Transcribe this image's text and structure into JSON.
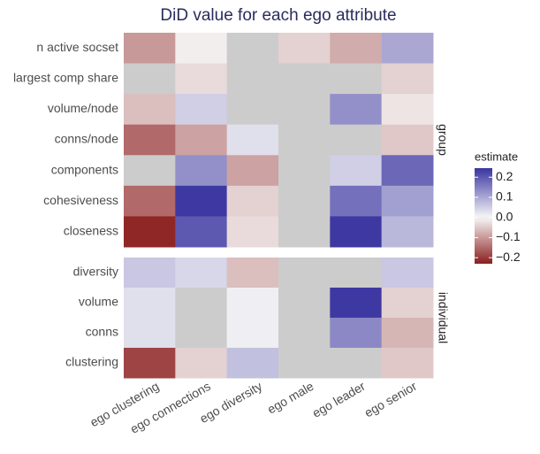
{
  "chart_data": {
    "type": "heatmap",
    "title": "DiD value for each ego attribute",
    "x": [
      "ego clustering",
      "ego connections",
      "ego diversity",
      "ego male",
      "ego leader",
      "ego senior"
    ],
    "facets": [
      {
        "name": "group",
        "rows": [
          "n active socset",
          "largest comp share",
          "volume/node",
          "conns/node",
          "components",
          "cohesiveness",
          "closeness"
        ],
        "values": [
          [
            -0.1,
            -0.01,
            null,
            -0.04,
            -0.08,
            0.1
          ],
          [
            null,
            -0.03,
            null,
            null,
            null,
            -0.04
          ],
          [
            -0.06,
            0.05,
            null,
            null,
            0.13,
            -0.02
          ],
          [
            -0.15,
            -0.09,
            0.03,
            null,
            null,
            -0.05
          ],
          [
            null,
            0.13,
            -0.09,
            null,
            0.05,
            0.18
          ],
          [
            -0.15,
            0.24,
            -0.04,
            null,
            0.17,
            0.11
          ],
          [
            -0.22,
            0.2,
            -0.03,
            null,
            0.24,
            0.08
          ]
        ]
      },
      {
        "name": "individual",
        "rows": [
          "diversity",
          "volume",
          "conns",
          "clustering"
        ],
        "values": [
          [
            0.06,
            0.04,
            -0.06,
            null,
            null,
            0.06
          ],
          [
            0.03,
            null,
            0.01,
            null,
            0.24,
            -0.04
          ],
          [
            0.03,
            null,
            0.01,
            null,
            0.14,
            -0.07
          ],
          [
            -0.19,
            -0.04,
            0.07,
            null,
            null,
            -0.05
          ]
        ]
      }
    ],
    "legend_title": "estimate",
    "colorlim": [
      -0.23,
      0.245
    ],
    "colorticks": [
      0.2,
      0.1,
      {
        "value": 0,
        "label": "0.0"
      },
      {
        "value": -0.1,
        "label": "−0.1"
      },
      {
        "value": -0.2,
        "label": "−0.2"
      }
    ],
    "colors": {
      "low": "#8b1e1e",
      "mid": "#f7f7f7",
      "high": "#3a35a0",
      "na": "#cccccc"
    }
  }
}
